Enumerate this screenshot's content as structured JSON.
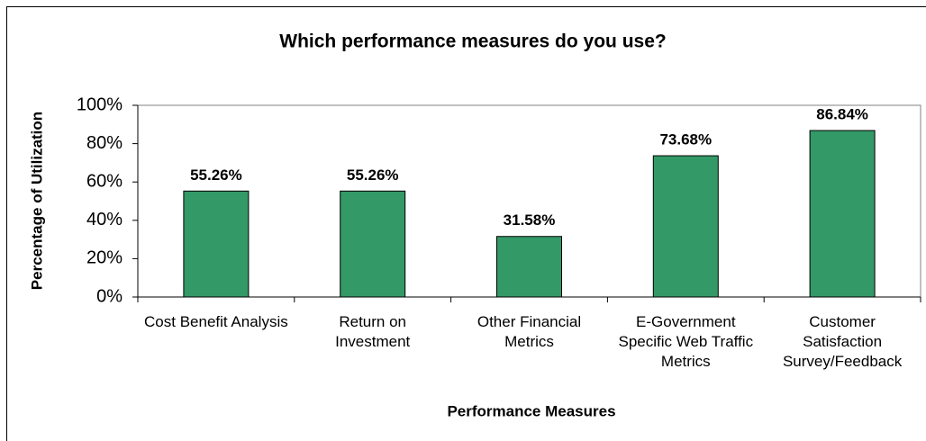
{
  "chart_data": {
    "type": "bar",
    "title": "Which performance measures do you use?",
    "x_label": "Performance Measures",
    "y_label": "Percentage of Utilization",
    "categories": [
      "Cost Benefit Analysis",
      "Return on Investment",
      "Other Financial Metrics",
      "E-Government Specific Web Traffic Metrics",
      "Customer Satisfaction Survey/Feedback"
    ],
    "values": [
      55.26,
      55.26,
      31.58,
      73.68,
      86.84
    ],
    "value_labels": [
      "55.26%",
      "55.26%",
      "31.58%",
      "73.68%",
      "86.84%"
    ],
    "color": "#339966",
    "ylim": [
      0,
      100
    ],
    "yticks": [
      {
        "value": 0,
        "label": "0%"
      },
      {
        "value": 20,
        "label": "20%"
      },
      {
        "value": 40,
        "label": "40%"
      },
      {
        "value": 60,
        "label": "60%"
      },
      {
        "value": 80,
        "label": "80%"
      },
      {
        "value": 100,
        "label": "100%"
      }
    ],
    "grid": false
  }
}
